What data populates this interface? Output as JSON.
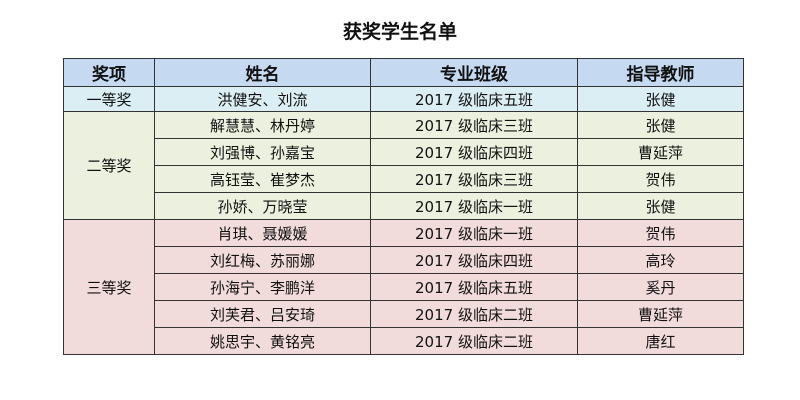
{
  "title": "获奖学生名单",
  "headers": [
    "奖项",
    "姓名",
    "专业班级",
    "指导教师"
  ],
  "groups": [
    {
      "award": "一等奖",
      "color": "#daeef3",
      "rows": [
        {
          "names": "洪健安、刘流",
          "class": "2017 级临床五班",
          "teacher": "张健"
        }
      ]
    },
    {
      "award": "二等奖",
      "color": "#ebf1de",
      "rows": [
        {
          "names": "解慧慧、林丹婷",
          "class": "2017 级临床三班",
          "teacher": "张健"
        },
        {
          "names": "刘强博、孙嘉宝",
          "class": "2017 级临床四班",
          "teacher": "曹延萍"
        },
        {
          "names": "高钰莹、崔梦杰",
          "class": "2017 级临床三班",
          "teacher": "贺伟"
        },
        {
          "names": "孙娇、万晓莹",
          "class": "2017 级临床一班",
          "teacher": "张健"
        }
      ]
    },
    {
      "award": "三等奖",
      "color": "#f2dcdb",
      "rows": [
        {
          "names": "肖琪、聂媛媛",
          "class": "2017 级临床一班",
          "teacher": "贺伟"
        },
        {
          "names": "刘红梅、苏丽娜",
          "class": "2017 级临床四班",
          "teacher": "高玲"
        },
        {
          "names": "孙海宁、李鹏洋",
          "class": "2017 级临床五班",
          "teacher": "奚丹"
        },
        {
          "names": "刘芙君、吕安琦",
          "class": "2017 级临床二班",
          "teacher": "曹延萍"
        },
        {
          "names": "姚思宇、黄铭亮",
          "class": "2017 级临床二班",
          "teacher": "唐红"
        }
      ]
    }
  ],
  "header_color": "#c5d9f1"
}
